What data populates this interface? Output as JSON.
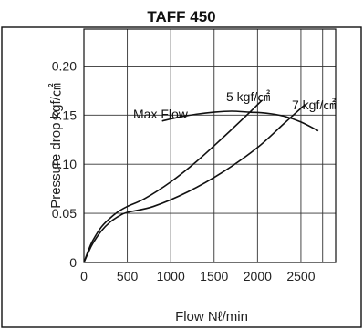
{
  "chart_data": {
    "type": "line",
    "title": "TAFF 450",
    "xlabel": "Flow Nℓ/min",
    "ylabel": "Pressure drop kgf/㎠",
    "xlim": [
      0,
      2900
    ],
    "ylim": [
      0,
      0.2375
    ],
    "x_ticks": [
      "0",
      "500",
      "1000",
      "1500",
      "2000",
      "2500"
    ],
    "y_ticks": [
      "0",
      "0.05",
      "0.10",
      "0.15",
      "0.20"
    ],
    "grid": true,
    "series": [
      {
        "name": "5 kgf/㎠",
        "x": [
          0,
          50,
          100,
          200,
          300,
          400,
          500,
          700,
          1000,
          1300,
          1600,
          1900,
          2050
        ],
        "y": [
          0,
          0.012,
          0.022,
          0.036,
          0.045,
          0.052,
          0.057,
          0.065,
          0.082,
          0.103,
          0.127,
          0.152,
          0.165
        ]
      },
      {
        "name": "7 kgf/㎠",
        "x": [
          0,
          50,
          100,
          200,
          300,
          400,
          500,
          800,
          1200,
          1600,
          2000,
          2300,
          2550
        ],
        "y": [
          0,
          0.01,
          0.019,
          0.032,
          0.041,
          0.047,
          0.051,
          0.057,
          0.072,
          0.092,
          0.117,
          0.141,
          0.161
        ]
      },
      {
        "name": "Max Flow",
        "x": [
          900,
          1100,
          1300,
          1500,
          1700,
          1900,
          2100,
          2300,
          2500,
          2700
        ],
        "y": [
          0.144,
          0.148,
          0.151,
          0.153,
          0.154,
          0.153,
          0.152,
          0.149,
          0.143,
          0.134
        ]
      }
    ],
    "annotations": [
      {
        "text": "Max Flow"
      },
      {
        "text": "5 kgf/㎠"
      },
      {
        "text": "7 kgf/㎠"
      }
    ]
  }
}
